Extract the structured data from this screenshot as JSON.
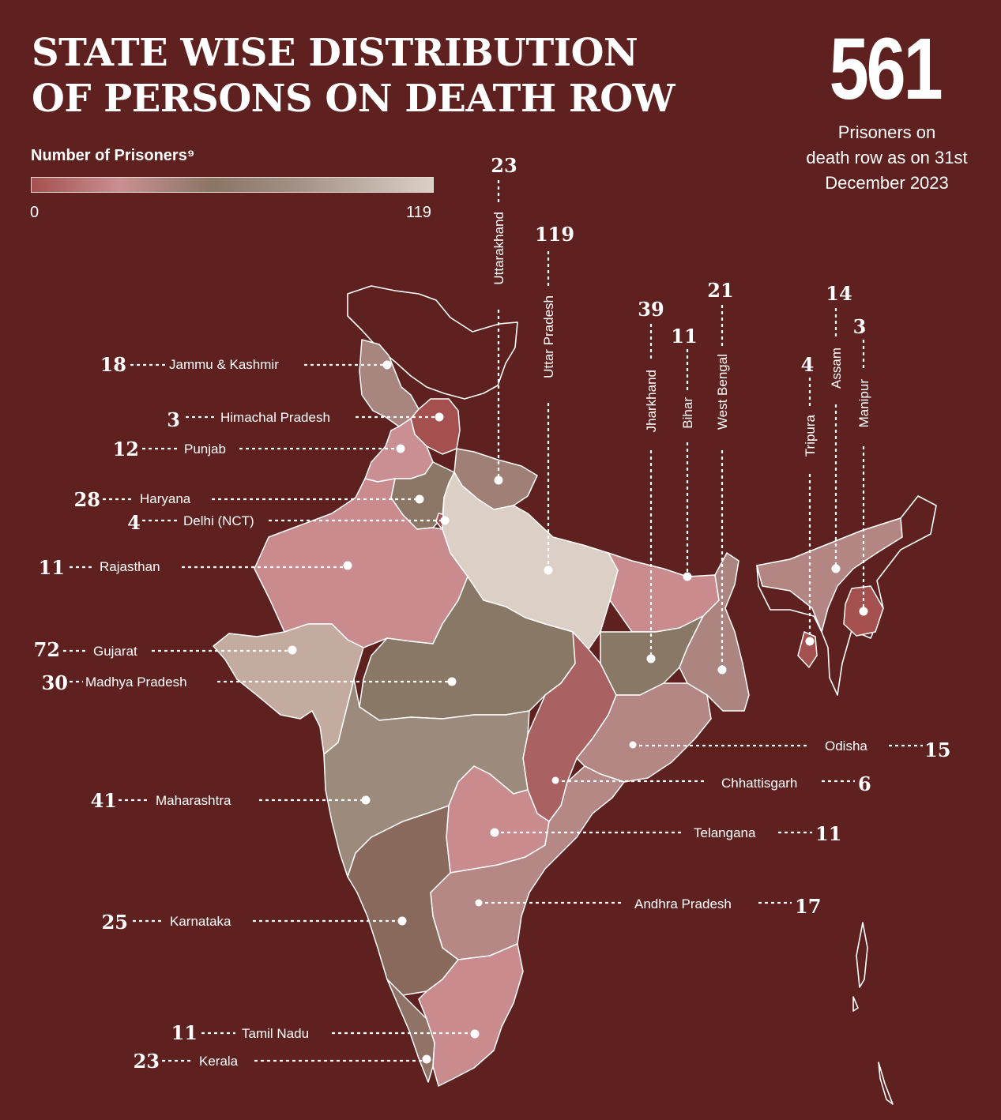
{
  "title_line1": "STATE WISE DISTRIBUTION",
  "title_line2": "OF PERSONS ON DEATH ROW",
  "total": {
    "value": "561",
    "caption_line1": "Prisoners on",
    "caption_line2": "death row as on 31st",
    "caption_line3": "December 2023"
  },
  "legend": {
    "title": "Number of Prisoners⁹",
    "min": "0",
    "max": "119",
    "colors": [
      "#a4504f",
      "#c98f92",
      "#8a7566",
      "#a08f84",
      "#dccfc6"
    ]
  },
  "states": [
    {
      "id": "jk",
      "name": "Jammu & Kashmir",
      "value": "18",
      "color": "#a98580"
    },
    {
      "id": "hp",
      "name": "Himachal Pradesh",
      "value": "3",
      "color": "#a4504f"
    },
    {
      "id": "pb",
      "name": "Punjab",
      "value": "12",
      "color": "#c98f92"
    },
    {
      "id": "hr",
      "name": "Haryana",
      "value": "28",
      "color": "#8c7767"
    },
    {
      "id": "dl",
      "name": "Delhi (NCT)",
      "value": "4",
      "color": "#a4504f"
    },
    {
      "id": "rj",
      "name": "Rajasthan",
      "value": "11",
      "color": "#c98b8e"
    },
    {
      "id": "gj",
      "name": "Gujarat",
      "value": "72",
      "color": "#c4aba0"
    },
    {
      "id": "mp",
      "name": "Madhya Pradesh",
      "value": "30",
      "color": "#8a7866"
    },
    {
      "id": "mh",
      "name": "Maharashtra",
      "value": "41",
      "color": "#9c8b7c"
    },
    {
      "id": "ka",
      "name": "Karnataka",
      "value": "25",
      "color": "#8a695d"
    },
    {
      "id": "tn",
      "name": "Tamil Nadu",
      "value": "11",
      "color": "#c98b8e"
    },
    {
      "id": "kl",
      "name": "Kerala",
      "value": "23",
      "color": "#917266"
    },
    {
      "id": "uk",
      "name": "Uttarakhand",
      "value": "23",
      "color": "#a08076"
    },
    {
      "id": "up",
      "name": "Uttar Pradesh",
      "value": "119",
      "color": "#dccfc6"
    },
    {
      "id": "jh",
      "name": "Jharkhand",
      "value": "39",
      "color": "#8a7866"
    },
    {
      "id": "br",
      "name": "Bihar",
      "value": "11",
      "color": "#c98b8e"
    },
    {
      "id": "wb",
      "name": "West Bengal",
      "value": "21",
      "color": "#ad8580"
    },
    {
      "id": "tr",
      "name": "Tripura",
      "value": "4",
      "color": "#a4504f"
    },
    {
      "id": "as",
      "name": "Assam",
      "value": "14",
      "color": "#b38583"
    },
    {
      "id": "mn",
      "name": "Manipur",
      "value": "3",
      "color": "#a4504f"
    },
    {
      "id": "od",
      "name": "Odisha",
      "value": "15",
      "color": "#b48684"
    },
    {
      "id": "cg",
      "name": "Chhattisgarh",
      "value": "6",
      "color": "#a96161"
    },
    {
      "id": "tg",
      "name": "Telangana",
      "value": "11",
      "color": "#c98b8e"
    },
    {
      "id": "ap",
      "name": "Andhra Pradesh",
      "value": "17",
      "color": "#b58885"
    }
  ]
}
